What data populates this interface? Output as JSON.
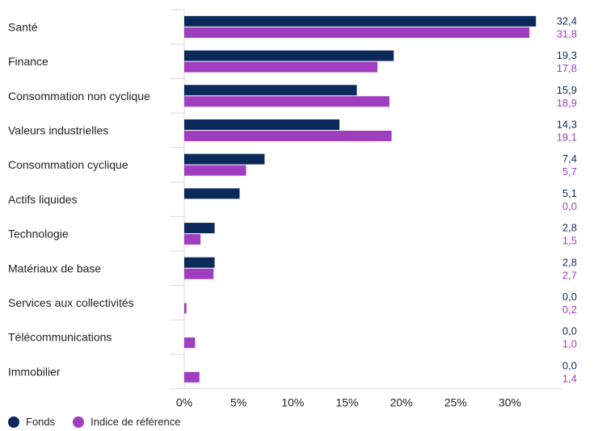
{
  "chart_data": {
    "type": "bar",
    "orientation": "horizontal",
    "categories": [
      "Santé",
      "Finance",
      "Consommation non cyclique",
      "Valeurs industrielles",
      "Consommation cyclique",
      "Actifs liquides",
      "Technologie",
      "Matériaux de base",
      "Services aux collectivités",
      "Télécommunications",
      "Immobilier"
    ],
    "series": [
      {
        "name": "Fonds",
        "color": "#0b2a5b",
        "values": [
          32.4,
          19.3,
          15.9,
          14.3,
          7.4,
          5.1,
          2.8,
          2.8,
          0.0,
          0.0,
          0.0
        ],
        "labels": [
          "32,4",
          "19,3",
          "15,9",
          "14,3",
          "7,4",
          "5,1",
          "2,8",
          "2,8",
          "0,0",
          "0,0",
          "0,0"
        ]
      },
      {
        "name": "Indice de référence",
        "color": "#a03ec0",
        "values": [
          31.8,
          17.8,
          18.9,
          19.1,
          5.7,
          0.0,
          1.5,
          2.7,
          0.2,
          1.0,
          1.4
        ],
        "labels": [
          "31,8",
          "17,8",
          "18,9",
          "19,1",
          "5,7",
          "0,0",
          "1,5",
          "2,7",
          "0,2",
          "1,0",
          "1,4"
        ]
      }
    ],
    "x_ticks": [
      "0%",
      "5%",
      "10%",
      "15%",
      "20%",
      "25%",
      "30%"
    ],
    "xlim": [
      0,
      35
    ],
    "legend_position": "bottom-left",
    "grid": false
  }
}
